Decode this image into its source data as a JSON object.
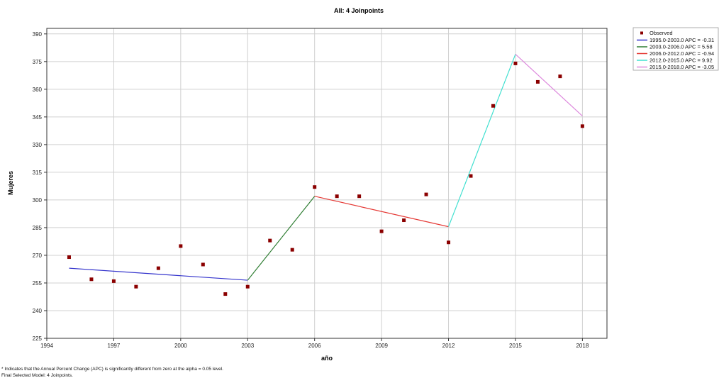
{
  "chart_data": {
    "type": "scatter",
    "title": "All: 4 Joinpoints",
    "xlabel": "año",
    "ylabel": "Mujeres",
    "xlim": [
      1994,
      2019.1
    ],
    "ylim": [
      225,
      393
    ],
    "xticks": [
      1994,
      1997,
      2000,
      2003,
      2006,
      2009,
      2012,
      2015,
      2018
    ],
    "yticks": [
      225,
      240,
      255,
      270,
      285,
      300,
      315,
      330,
      345,
      360,
      375,
      390
    ],
    "grid": true,
    "legend_position": "top-right-outside",
    "observed": {
      "name": "Observed",
      "color": "#8b0000",
      "x": [
        1995,
        1996,
        1997,
        1998,
        1999,
        2000,
        2001,
        2002,
        2003,
        2004,
        2005,
        2006,
        2007,
        2008,
        2009,
        2010,
        2011,
        2012,
        2013,
        2014,
        2015,
        2016,
        2017,
        2018
      ],
      "y": [
        269,
        257,
        256,
        253,
        263,
        275,
        265,
        249,
        253,
        278,
        273,
        307,
        302,
        302,
        283,
        289,
        303,
        277,
        313,
        351,
        374,
        364,
        367,
        340
      ]
    },
    "segments": [
      {
        "name": "1995.0-2003.0 APC = -0.31",
        "color": "#3333cc",
        "x": [
          1995,
          2003
        ],
        "y": [
          263,
          256.5
        ]
      },
      {
        "name": "2003.0-2006.0 APC = 5.58",
        "color": "#2e7d32",
        "x": [
          2003,
          2006
        ],
        "y": [
          256.5,
          302
        ]
      },
      {
        "name": "2006.0-2012.0 APC = -0.94",
        "color": "#e53935",
        "x": [
          2006,
          2012
        ],
        "y": [
          302,
          285.5
        ]
      },
      {
        "name": "2012.0-2015.0 APC = 9.92",
        "color": "#40e0d0",
        "x": [
          2012,
          2015
        ],
        "y": [
          285.5,
          379
        ]
      },
      {
        "name": "2015.0-2018.0 APC = -3.05",
        "color": "#dd88dd",
        "x": [
          2015,
          2018
        ],
        "y": [
          379,
          345.5
        ]
      }
    ]
  },
  "footnotes": {
    "line1": "* Indicates that the Annual Percent Change (APC) is significantly different from zero at the alpha = 0.05 level.",
    "line2": "Final Selected Model: 4 Joinpoints."
  }
}
